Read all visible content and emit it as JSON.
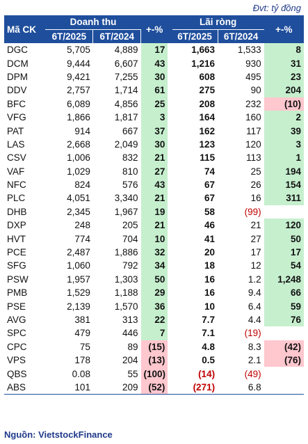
{
  "unit_note": "Đvt: tỷ đồng",
  "header": {
    "code": "Mã CK",
    "group_revenue": "Doanh thu",
    "group_profit": "Lãi ròng",
    "col_2025": "6T/2025",
    "col_2024": "6T/2024",
    "change": "+-%"
  },
  "rows": [
    {
      "code": "DGC",
      "rev25": "5,705",
      "rev24": "4,889",
      "revchg": "17",
      "p25": "1,663",
      "p24": "1,533",
      "pchg": "8"
    },
    {
      "code": "DCM",
      "rev25": "9,444",
      "rev24": "6,607",
      "revchg": "43",
      "p25": "1,216",
      "p24": "930",
      "pchg": "31"
    },
    {
      "code": "DPM",
      "rev25": "9,421",
      "rev24": "7,255",
      "revchg": "30",
      "p25": "608",
      "p24": "495",
      "pchg": "23"
    },
    {
      "code": "DDV",
      "rev25": "2,757",
      "rev24": "1,714",
      "revchg": "61",
      "p25": "275",
      "p24": "90",
      "pchg": "204"
    },
    {
      "code": "BFC",
      "rev25": "6,089",
      "rev24": "4,856",
      "revchg": "25",
      "p25": "208",
      "p24": "232",
      "pchg": "(10)"
    },
    {
      "code": "VFG",
      "rev25": "1,866",
      "rev24": "1,817",
      "revchg": "3",
      "p25": "164",
      "p24": "160",
      "pchg": "2"
    },
    {
      "code": "PAT",
      "rev25": "914",
      "rev24": "667",
      "revchg": "37",
      "p25": "162",
      "p24": "117",
      "pchg": "39"
    },
    {
      "code": "LAS",
      "rev25": "2,668",
      "rev24": "2,049",
      "revchg": "30",
      "p25": "123",
      "p24": "120",
      "pchg": "3"
    },
    {
      "code": "CSV",
      "rev25": "1,006",
      "rev24": "832",
      "revchg": "21",
      "p25": "115",
      "p24": "113",
      "pchg": "1"
    },
    {
      "code": "VAF",
      "rev25": "1,029",
      "rev24": "810",
      "revchg": "27",
      "p25": "74",
      "p24": "25",
      "pchg": "194"
    },
    {
      "code": "NFC",
      "rev25": "824",
      "rev24": "576",
      "revchg": "43",
      "p25": "67",
      "p24": "26",
      "pchg": "154"
    },
    {
      "code": "PLC",
      "rev25": "4,051",
      "rev24": "3,340",
      "revchg": "21",
      "p25": "67",
      "p24": "16",
      "pchg": "311"
    },
    {
      "code": "DHB",
      "rev25": "2,345",
      "rev24": "1,967",
      "revchg": "19",
      "p25": "58",
      "p24": "(99)",
      "pchg": ""
    },
    {
      "code": "DXP",
      "rev25": "248",
      "rev24": "205",
      "revchg": "21",
      "p25": "46",
      "p24": "21",
      "pchg": "120"
    },
    {
      "code": "HVT",
      "rev25": "774",
      "rev24": "704",
      "revchg": "10",
      "p25": "41",
      "p24": "27",
      "pchg": "50"
    },
    {
      "code": "PCE",
      "rev25": "2,487",
      "rev24": "1,886",
      "revchg": "32",
      "p25": "20",
      "p24": "17",
      "pchg": "17"
    },
    {
      "code": "SFG",
      "rev25": "1,060",
      "rev24": "792",
      "revchg": "34",
      "p25": "18",
      "p24": "12",
      "pchg": "54"
    },
    {
      "code": "PSW",
      "rev25": "1,957",
      "rev24": "1,303",
      "revchg": "50",
      "p25": "16",
      "p24": "1.2",
      "pchg": "1,248"
    },
    {
      "code": "PMB",
      "rev25": "1,529",
      "rev24": "1,188",
      "revchg": "29",
      "p25": "16",
      "p24": "9.4",
      "pchg": "66"
    },
    {
      "code": "PSE",
      "rev25": "2,139",
      "rev24": "1,570",
      "revchg": "36",
      "p25": "10",
      "p24": "6.4",
      "pchg": "59"
    },
    {
      "code": "AVG",
      "rev25": "381",
      "rev24": "313",
      "revchg": "22",
      "p25": "7.7",
      "p24": "4.4",
      "pchg": "76"
    },
    {
      "code": "SPC",
      "rev25": "479",
      "rev24": "446",
      "revchg": "7",
      "p25": "7.1",
      "p24": "(19)",
      "pchg": ""
    },
    {
      "code": "CPC",
      "rev25": "75",
      "rev24": "89",
      "revchg": "(15)",
      "p25": "4.8",
      "p24": "8.3",
      "pchg": "(42)"
    },
    {
      "code": "VPS",
      "rev25": "178",
      "rev24": "204",
      "revchg": "(13)",
      "p25": "0.5",
      "p24": "2.1",
      "pchg": "(76)"
    },
    {
      "code": "QBS",
      "rev25": "0.08",
      "rev24": "55",
      "revchg": "(100)",
      "p25": "(14)",
      "p24": "(49)",
      "pchg": ""
    },
    {
      "code": "ABS",
      "rev25": "101",
      "rev24": "209",
      "revchg": "(52)",
      "p25": "(271)",
      "p24": "6.8",
      "pchg": ""
    }
  ],
  "source": "Nguồn: VietstockFinance"
}
